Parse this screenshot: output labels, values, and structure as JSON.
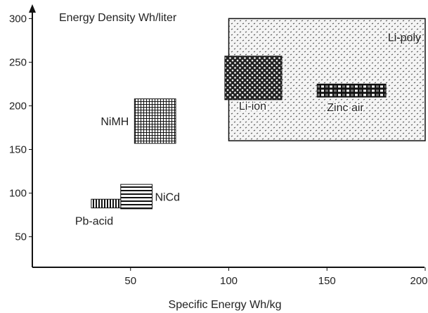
{
  "chart_data": {
    "type": "area",
    "title": "",
    "xlabel": "Specific Energy Wh/kg",
    "ylabel": "Energy Density Wh/liter",
    "xlim": [
      0,
      200
    ],
    "ylim": [
      15,
      310
    ],
    "x_ticks": [
      "50",
      "100",
      "150",
      "200"
    ],
    "x_tick_values": [
      50,
      100,
      150,
      200
    ],
    "y_ticks": [
      "300",
      "250",
      "200",
      "150",
      "100",
      "50"
    ],
    "y_tick_values": [
      300,
      250,
      200,
      150,
      100,
      50
    ],
    "grid": false,
    "regions": [
      {
        "name": "Li-poly",
        "x0": 100,
        "x1": 200,
        "y0": 160,
        "y1": 300,
        "pattern": "dots",
        "color": "#555555"
      },
      {
        "name": "Li-ion",
        "x0": 98,
        "x1": 127,
        "y0": 207,
        "y1": 257,
        "pattern": "dense-dots",
        "color": "#111111"
      },
      {
        "name": "Zinc air",
        "x0": 145,
        "x1": 180,
        "y0": 210,
        "y1": 225,
        "pattern": "checker-lines",
        "color": "#111111"
      },
      {
        "name": "NiMH",
        "x0": 52,
        "x1": 73,
        "y0": 157,
        "y1": 208,
        "pattern": "grid",
        "color": "#111111"
      },
      {
        "name": "NiCd",
        "x0": 45,
        "x1": 61,
        "y0": 82,
        "y1": 110,
        "pattern": "hlines",
        "color": "#111111"
      },
      {
        "name": "Pb-acid",
        "x0": 30,
        "x1": 45,
        "y0": 83,
        "y1": 93,
        "pattern": "dashes",
        "color": "#111111"
      }
    ]
  }
}
